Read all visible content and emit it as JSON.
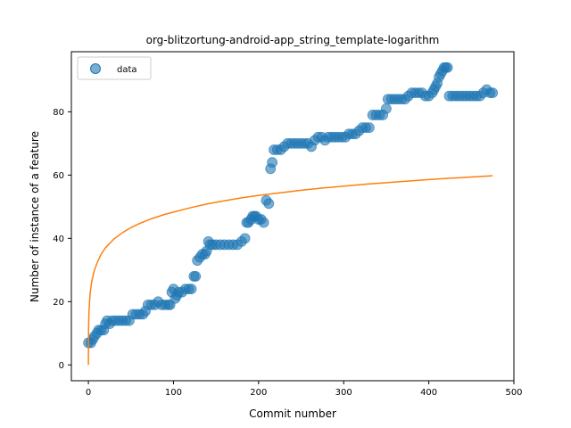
{
  "chart_data": {
    "type": "scatter",
    "title": "org-blitzortung-android-app_string_template-logarithm",
    "xlabel": "Commit number",
    "ylabel": "Number of instance of a feature",
    "xlim": [
      -20,
      500
    ],
    "ylim": [
      -5,
      99
    ],
    "xticks": [
      0,
      100,
      200,
      300,
      400,
      500
    ],
    "yticks": [
      0,
      20,
      40,
      60,
      80
    ],
    "xtick_labels": [
      "0",
      "100",
      "200",
      "300",
      "400",
      "500"
    ],
    "ytick_labels": [
      "0",
      "20",
      "40",
      "60",
      "80"
    ],
    "legend": {
      "position": "top-left",
      "entries": [
        "data"
      ]
    },
    "colors": {
      "data": "#1f77b4",
      "fit": "#ff7f0e"
    },
    "series": [
      {
        "name": "data",
        "kind": "scatter",
        "points": [
          [
            0,
            7
          ],
          [
            3,
            7
          ],
          [
            5,
            8
          ],
          [
            7,
            9
          ],
          [
            10,
            10
          ],
          [
            12,
            11
          ],
          [
            15,
            11
          ],
          [
            18,
            11
          ],
          [
            20,
            13
          ],
          [
            22,
            14
          ],
          [
            25,
            13
          ],
          [
            28,
            14
          ],
          [
            32,
            14
          ],
          [
            36,
            14
          ],
          [
            40,
            14
          ],
          [
            44,
            14
          ],
          [
            48,
            14
          ],
          [
            52,
            16
          ],
          [
            56,
            16
          ],
          [
            60,
            16
          ],
          [
            64,
            16
          ],
          [
            67,
            17
          ],
          [
            70,
            19
          ],
          [
            74,
            19
          ],
          [
            78,
            19
          ],
          [
            82,
            20
          ],
          [
            86,
            19
          ],
          [
            90,
            19
          ],
          [
            94,
            19
          ],
          [
            96,
            19
          ],
          [
            98,
            23
          ],
          [
            100,
            24
          ],
          [
            102,
            21
          ],
          [
            104,
            22
          ],
          [
            106,
            23
          ],
          [
            110,
            23
          ],
          [
            114,
            24
          ],
          [
            118,
            24
          ],
          [
            121,
            24
          ],
          [
            124,
            28
          ],
          [
            126,
            28
          ],
          [
            128,
            33
          ],
          [
            131,
            34
          ],
          [
            134,
            35
          ],
          [
            137,
            35
          ],
          [
            139,
            36
          ],
          [
            141,
            39
          ],
          [
            143,
            38
          ],
          [
            146,
            38
          ],
          [
            150,
            38
          ],
          [
            155,
            38
          ],
          [
            160,
            38
          ],
          [
            165,
            38
          ],
          [
            170,
            38
          ],
          [
            175,
            38
          ],
          [
            180,
            39
          ],
          [
            184,
            40
          ],
          [
            186,
            45
          ],
          [
            188,
            45
          ],
          [
            191,
            46
          ],
          [
            193,
            47
          ],
          [
            195,
            47
          ],
          [
            197,
            47
          ],
          [
            200,
            46
          ],
          [
            203,
            46
          ],
          [
            206,
            45
          ],
          [
            209,
            52
          ],
          [
            212,
            51
          ],
          [
            214,
            62
          ],
          [
            216,
            64
          ],
          [
            218,
            68
          ],
          [
            222,
            68
          ],
          [
            226,
            68
          ],
          [
            230,
            69
          ],
          [
            234,
            70
          ],
          [
            238,
            70
          ],
          [
            242,
            70
          ],
          [
            246,
            70
          ],
          [
            250,
            70
          ],
          [
            254,
            70
          ],
          [
            258,
            70
          ],
          [
            262,
            69
          ],
          [
            266,
            71
          ],
          [
            270,
            72
          ],
          [
            274,
            72
          ],
          [
            278,
            71
          ],
          [
            282,
            72
          ],
          [
            286,
            72
          ],
          [
            290,
            72
          ],
          [
            294,
            72
          ],
          [
            298,
            72
          ],
          [
            302,
            72
          ],
          [
            306,
            73
          ],
          [
            310,
            73
          ],
          [
            314,
            73
          ],
          [
            318,
            74
          ],
          [
            322,
            75
          ],
          [
            326,
            75
          ],
          [
            330,
            75
          ],
          [
            334,
            79
          ],
          [
            338,
            79
          ],
          [
            342,
            79
          ],
          [
            346,
            79
          ],
          [
            350,
            81
          ],
          [
            352,
            84
          ],
          [
            356,
            84
          ],
          [
            360,
            84
          ],
          [
            364,
            84
          ],
          [
            368,
            84
          ],
          [
            372,
            84
          ],
          [
            376,
            85
          ],
          [
            380,
            86
          ],
          [
            384,
            86
          ],
          [
            388,
            86
          ],
          [
            392,
            86
          ],
          [
            396,
            85
          ],
          [
            400,
            85
          ],
          [
            404,
            86
          ],
          [
            406,
            87
          ],
          [
            408,
            88
          ],
          [
            410,
            89
          ],
          [
            412,
            91
          ],
          [
            414,
            92
          ],
          [
            416,
            93
          ],
          [
            418,
            94
          ],
          [
            420,
            94
          ],
          [
            422,
            94
          ],
          [
            424,
            85
          ],
          [
            428,
            85
          ],
          [
            432,
            85
          ],
          [
            436,
            85
          ],
          [
            440,
            85
          ],
          [
            444,
            85
          ],
          [
            448,
            85
          ],
          [
            452,
            85
          ],
          [
            456,
            85
          ],
          [
            460,
            85
          ],
          [
            464,
            86
          ],
          [
            468,
            87
          ],
          [
            472,
            86
          ],
          [
            475,
            86
          ]
        ]
      },
      {
        "kind": "line",
        "x": [
          0,
          0.2,
          0.5,
          1,
          2,
          4,
          7,
          10,
          15,
          20,
          30,
          40,
          50,
          60,
          75,
          90,
          100,
          120,
          140,
          160,
          180,
          200,
          225,
          250,
          275,
          300,
          325,
          350,
          375,
          400,
          425,
          450,
          475
        ],
        "values": [
          0,
          11.1,
          15.2,
          18.2,
          22.6,
          26.5,
          29.9,
          32.1,
          35.0,
          37.0,
          39.8,
          41.8,
          43.4,
          44.7,
          46.3,
          47.6,
          48.3,
          49.7,
          50.9,
          51.9,
          52.8,
          53.6,
          54.4,
          55.2,
          55.9,
          56.5,
          57.1,
          57.6,
          58.1,
          58.6,
          59.0,
          59.4,
          59.8
        ]
      }
    ]
  }
}
